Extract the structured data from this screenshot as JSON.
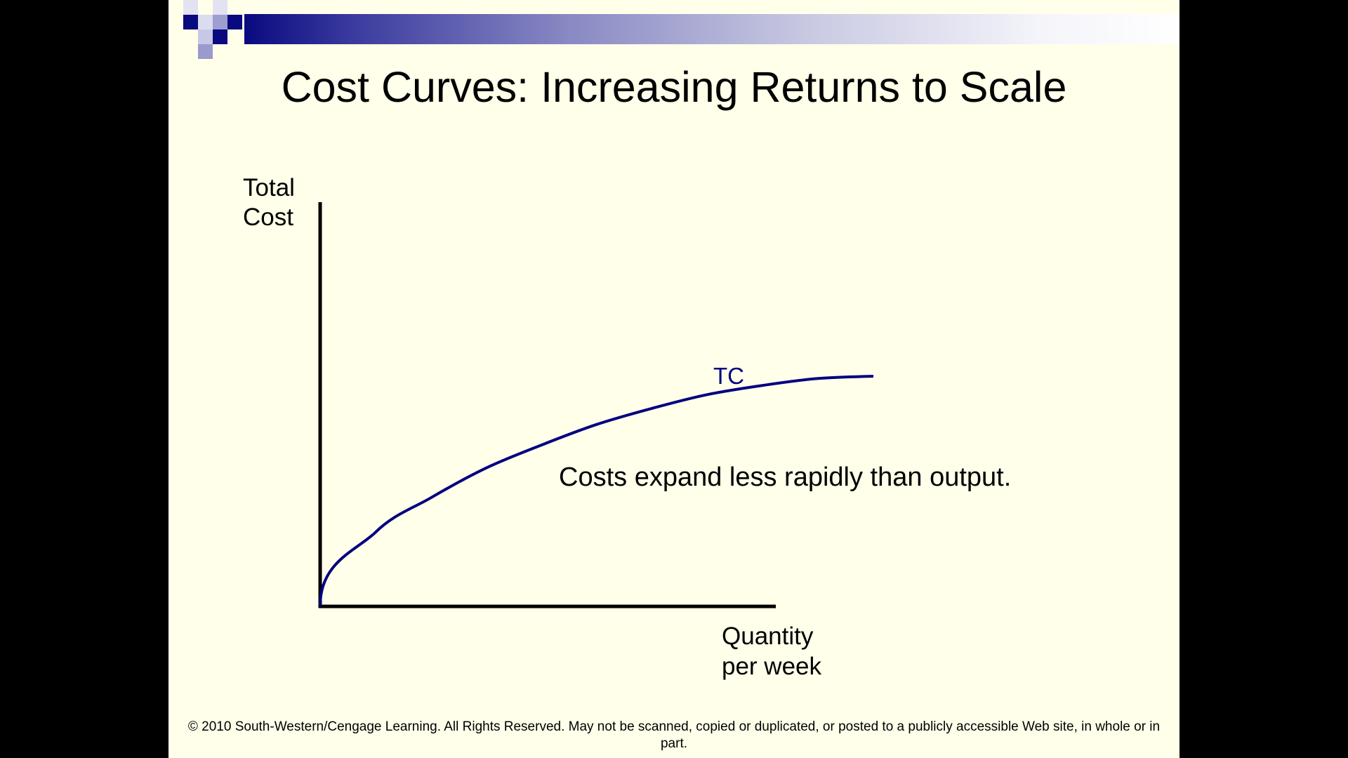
{
  "slide": {
    "title": "Cost Curves: Increasing Returns to Scale",
    "copyright": "© 2010 South-Western/Cengage Learning. All Rights Reserved. May not be scanned, copied or duplicated, or posted to a publicly accessible Web site, in whole or in part.",
    "background_color": "#FFFFEA",
    "accent_color": "#0A0A80"
  },
  "chart_data": {
    "type": "line",
    "ylabel_lines": [
      "Total",
      "Cost"
    ],
    "xlabel_lines": [
      "Quantity",
      "per week"
    ],
    "series": [
      {
        "name": "TC",
        "color": "#000080",
        "shape": "concave",
        "x": [
          0,
          0.1,
          0.2,
          0.3,
          0.4,
          0.5,
          0.6,
          0.7,
          0.8,
          0.9,
          1.0
        ],
        "y": [
          0,
          0.32,
          0.47,
          0.6,
          0.7,
          0.79,
          0.86,
          0.92,
          0.96,
          0.99,
          1.0
        ]
      }
    ],
    "annotations": [
      {
        "text": "Costs expand less rapidly than output."
      }
    ],
    "grid": false,
    "legend": "none"
  }
}
